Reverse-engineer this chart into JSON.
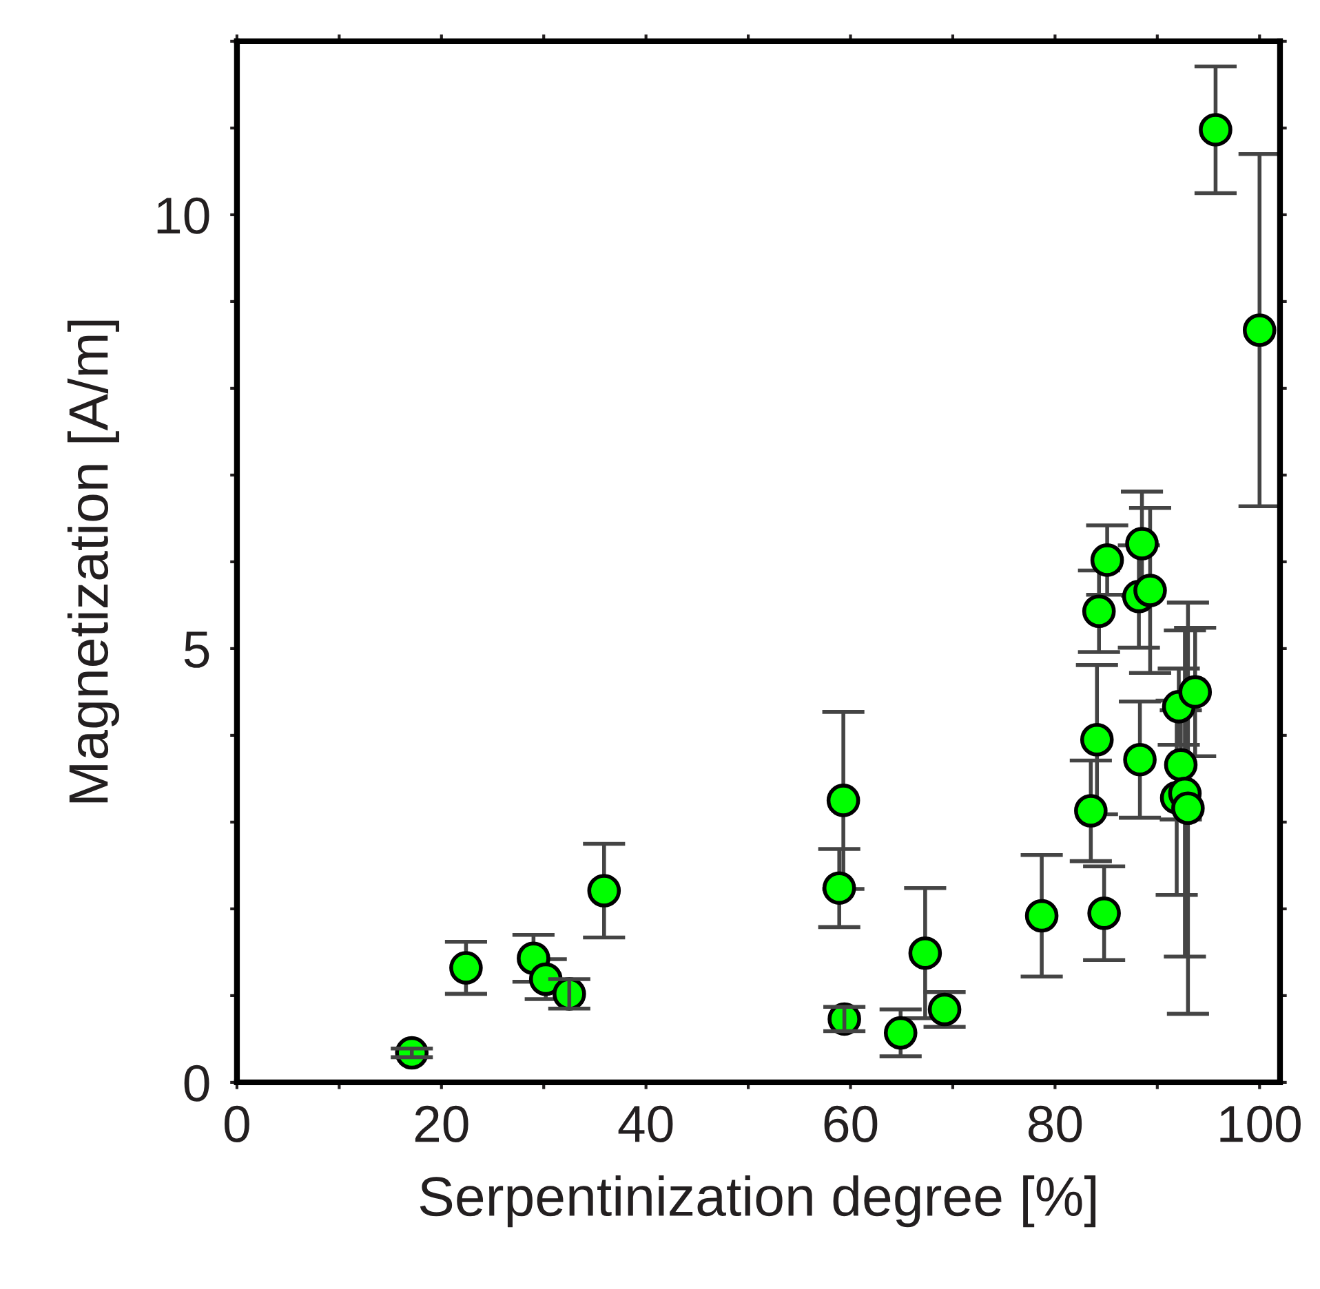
{
  "chart_data": {
    "type": "scatter",
    "xlabel": "Serpentinization degree [%]",
    "ylabel": "Magnetization [A/m]",
    "xlim": [
      0,
      102
    ],
    "ylim": [
      0,
      12
    ],
    "xticks": [
      0,
      {
        "value": 10,
        "label": null
      },
      20,
      {
        "value": 30,
        "label": null
      },
      40,
      {
        "value": 50,
        "label": null
      },
      60,
      {
        "value": 70,
        "label": null
      },
      80,
      {
        "value": 90,
        "label": null
      },
      100
    ],
    "yticks": [
      0,
      {
        "value": 1,
        "label": null
      },
      {
        "value": 2,
        "label": null
      },
      {
        "value": 3,
        "label": null
      },
      {
        "value": 4,
        "label": null
      },
      5,
      {
        "value": 6,
        "label": null
      },
      {
        "value": 7,
        "label": null
      },
      {
        "value": 8,
        "label": null
      },
      {
        "value": 9,
        "label": null
      },
      10,
      {
        "value": 11,
        "label": null
      },
      {
        "value": 12,
        "label": null
      }
    ],
    "grid": false,
    "marker": "circle",
    "series": [
      {
        "color": "#00ff00",
        "x": [
          17.1,
          22.4,
          29.0,
          30.2,
          32.5,
          35.9,
          58.9,
          59.3,
          59.4,
          64.9,
          67.3,
          69.2,
          78.7,
          83.5,
          84.1,
          84.3,
          84.8,
          85.1,
          88.2,
          88.3,
          88.5,
          89.3,
          91.9,
          92.1,
          92.3,
          92.7,
          93.0,
          93.7,
          95.7,
          100.0
        ],
        "values": [
          0.34,
          1.32,
          1.43,
          1.19,
          1.02,
          2.21,
          2.24,
          3.25,
          0.73,
          0.57,
          1.49,
          0.84,
          1.92,
          3.13,
          3.95,
          5.43,
          1.95,
          6.02,
          5.6,
          3.72,
          6.21,
          5.67,
          3.28,
          4.33,
          3.66,
          3.33,
          3.16,
          4.5,
          10.98,
          8.67
        ],
        "errors": [
          0.05,
          0.3,
          0.27,
          0.23,
          0.17,
          0.54,
          0.45,
          1.02,
          0.14,
          0.27,
          0.75,
          0.2,
          0.7,
          0.58,
          0.86,
          0.47,
          0.54,
          0.4,
          0.59,
          0.67,
          0.6,
          0.95,
          1.12,
          0.44,
          0.63,
          1.88,
          2.37,
          0.74,
          0.73,
          2.03
        ]
      }
    ]
  }
}
